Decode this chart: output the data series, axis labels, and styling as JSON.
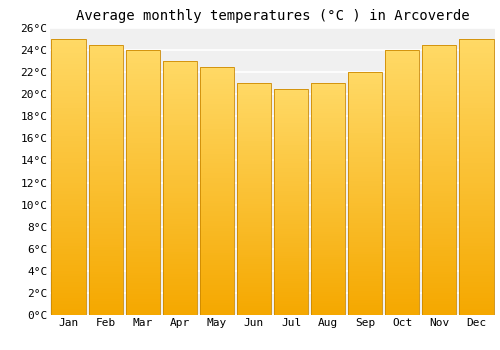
{
  "months": [
    "Jan",
    "Feb",
    "Mar",
    "Apr",
    "May",
    "Jun",
    "Jul",
    "Aug",
    "Sep",
    "Oct",
    "Nov",
    "Dec"
  ],
  "values": [
    25.0,
    24.5,
    24.0,
    23.0,
    22.5,
    21.0,
    20.5,
    21.0,
    22.0,
    24.0,
    24.5,
    25.0
  ],
  "bar_color_bottom": "#F5A800",
  "bar_color_top": "#FFD966",
  "bar_edge_color": "#CC8800",
  "title": "Average monthly temperatures (°C ) in Arcoverde",
  "ylim": [
    0,
    26
  ],
  "ytick_step": 2,
  "background_color": "#ffffff",
  "plot_bg_color": "#f0f0f0",
  "grid_color": "#ffffff",
  "title_fontsize": 10,
  "tick_fontsize": 8,
  "font_family": "monospace"
}
